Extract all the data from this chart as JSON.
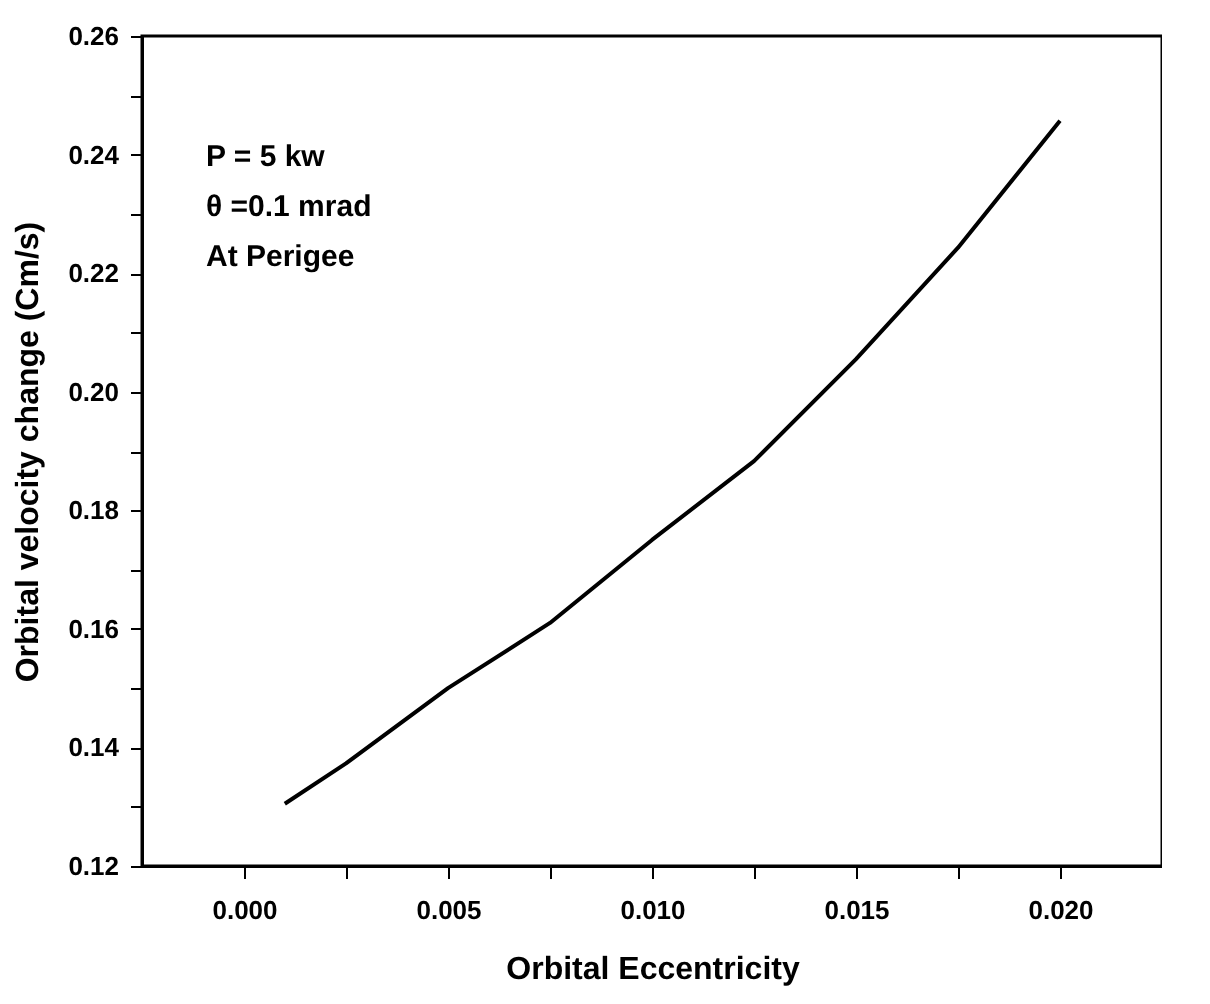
{
  "chart_data": {
    "type": "line",
    "xlabel": "Orbital Eccentricity",
    "ylabel": "Orbital velocity change (Cm/s)",
    "annotations": [
      "P = 5 kw",
      "θ =0.1 mrad",
      "At Perigee"
    ],
    "x": [
      0.001,
      0.0025,
      0.005,
      0.0075,
      0.01,
      0.0125,
      0.015,
      0.0175,
      0.02
    ],
    "series": [
      {
        "color": "#000000",
        "values": [
          0.1305,
          0.1373,
          0.15,
          0.161,
          0.175,
          0.1883,
          0.2055,
          0.2243,
          0.2457
        ]
      }
    ],
    "xlim": [
      -0.0025,
      0.0225
    ],
    "xticks": [
      {
        "value": 0,
        "label": "0.000"
      },
      {
        "value": 0.0025,
        "label": null
      },
      {
        "value": 0.005,
        "label": "0.005"
      },
      {
        "value": 0.0075,
        "label": null
      },
      {
        "value": 0.01,
        "label": "0.010"
      },
      {
        "value": 0.0125,
        "label": null
      },
      {
        "value": 0.015,
        "label": "0.015"
      },
      {
        "value": 0.0175,
        "label": null
      },
      {
        "value": 0.02,
        "label": "0.020"
      }
    ],
    "ylim": [
      0.12,
      0.26
    ],
    "yticks": [
      {
        "value": 0.12,
        "label": "0.12"
      },
      {
        "value": 0.13,
        "label": null
      },
      {
        "value": 0.14,
        "label": "0.14"
      },
      {
        "value": 0.15,
        "label": null
      },
      {
        "value": 0.16,
        "label": "0.16"
      },
      {
        "value": 0.17,
        "label": null
      },
      {
        "value": 0.18,
        "label": "0.18"
      },
      {
        "value": 0.19,
        "label": null
      },
      {
        "value": 0.2,
        "label": "0.20"
      },
      {
        "value": 0.21,
        "label": null
      },
      {
        "value": 0.22,
        "label": "0.22"
      },
      {
        "value": 0.23,
        "label": null
      },
      {
        "value": 0.24,
        "label": "0.24"
      },
      {
        "value": 0.25,
        "label": null
      },
      {
        "value": 0.26,
        "label": "0.26"
      }
    ],
    "grid": false,
    "marker": "none",
    "line_style": "solid"
  }
}
